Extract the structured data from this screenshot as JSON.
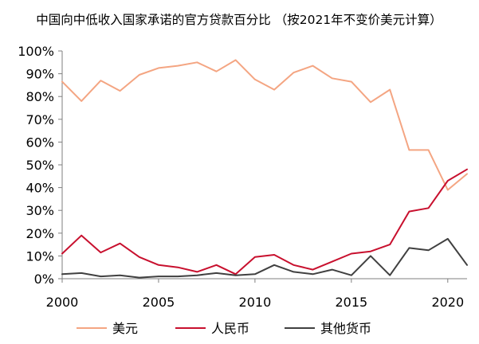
{
  "chart_data": {
    "type": "line",
    "title": "中国向中低收入国家承诺的官方贷款百分比 （按2021年不变价美元计算）",
    "xlabel": "",
    "ylabel": "",
    "x": [
      2000,
      2001,
      2002,
      2003,
      2004,
      2005,
      2006,
      2007,
      2008,
      2009,
      2010,
      2011,
      2012,
      2013,
      2014,
      2015,
      2016,
      2017,
      2018,
      2019,
      2020,
      2021
    ],
    "series": [
      {
        "name": "美元",
        "color": "#f4a582",
        "values": [
          86.5,
          78,
          87,
          82.5,
          89.5,
          92.5,
          93.5,
          95,
          91,
          96,
          87.5,
          83,
          90.5,
          93.5,
          88,
          86.5,
          77.5,
          83,
          56.5,
          56.5,
          39,
          46
        ]
      },
      {
        "name": "人民币",
        "color": "#c8102e",
        "values": [
          11,
          19,
          11.5,
          15.5,
          9.5,
          6,
          5,
          3,
          6,
          2,
          9.5,
          10.5,
          6,
          4,
          7.5,
          11,
          12,
          15,
          29.5,
          31,
          43,
          48
        ]
      },
      {
        "name": "其他货币",
        "color": "#404040",
        "values": [
          2,
          2.5,
          1,
          1.5,
          0.5,
          1,
          1,
          1.5,
          2.5,
          1.5,
          2,
          6,
          3,
          2,
          4,
          1.5,
          10,
          1.5,
          13.5,
          12.5,
          17.5,
          6
        ]
      }
    ],
    "xlim": [
      2000,
      2021
    ],
    "ylim": [
      0,
      100
    ],
    "x_ticks": [
      2000,
      2005,
      2010,
      2015,
      2020
    ],
    "x_tick_labels": [
      "2000",
      "2005",
      "2010",
      "2015",
      "2020"
    ],
    "y_ticks": [
      0,
      10,
      20,
      30,
      40,
      50,
      60,
      70,
      80,
      90,
      100
    ],
    "y_tick_labels": [
      "0%",
      "10%",
      "20%",
      "30%",
      "40%",
      "50%",
      "60%",
      "70%",
      "80%",
      "90%",
      "100%"
    ],
    "grid": false,
    "legend_position": "bottom"
  }
}
